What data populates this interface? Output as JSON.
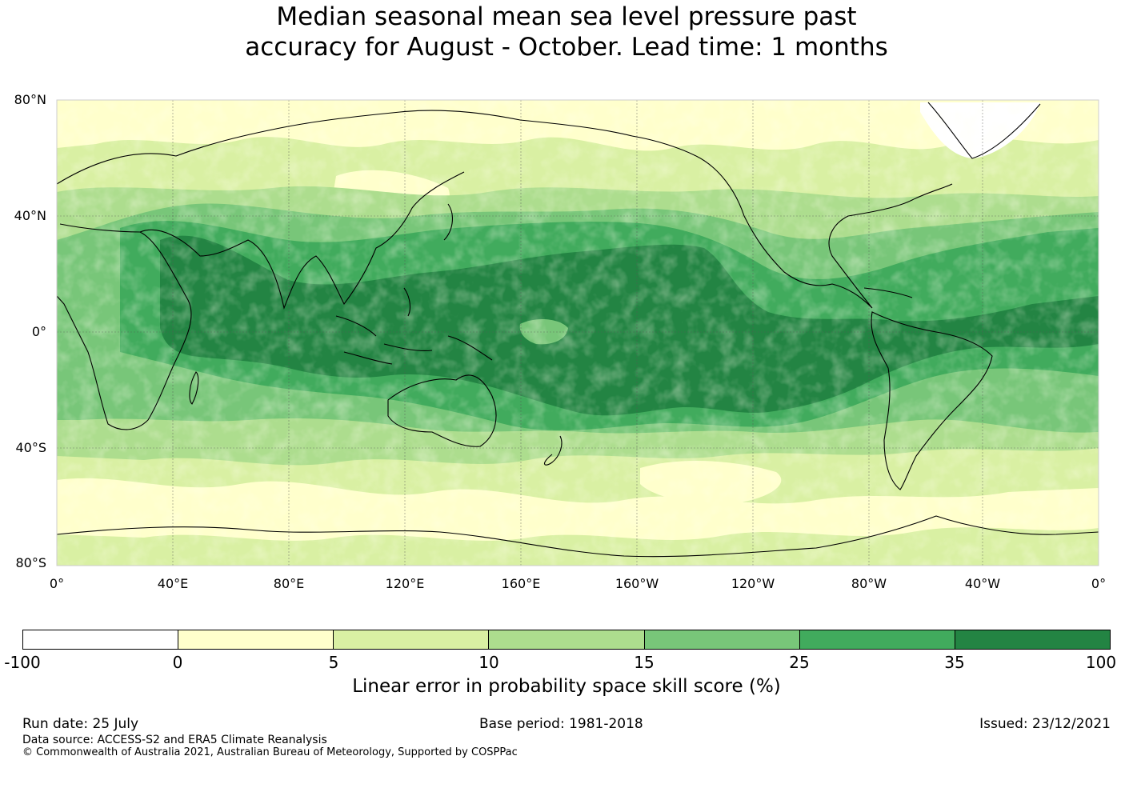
{
  "title": {
    "line1": "Median seasonal mean sea level pressure past",
    "line2": "accuracy for August - October. Lead time: 1 months"
  },
  "map": {
    "lat_labels": [
      "80°N",
      "40°N",
      "0°",
      "40°S",
      "80°S"
    ],
    "lon_labels": [
      "0°",
      "40°E",
      "80°E",
      "120°E",
      "160°E",
      "160°W",
      "120°W",
      "80°W",
      "40°W",
      "0°"
    ],
    "colors": {
      "neg": "#ffffff",
      "c0_5": "#ffffcc",
      "c5_10": "#d9f0a3",
      "c10_15": "#addd8e",
      "c15_25": "#78c679",
      "c25_35": "#41ab5d",
      "c35_100": "#238443",
      "coast": "#000000"
    }
  },
  "colorbar": {
    "ticks": [
      "-100",
      "0",
      "5",
      "10",
      "15",
      "25",
      "35",
      "100"
    ],
    "colors": [
      "#ffffff",
      "#ffffcc",
      "#d9f0a3",
      "#addd8e",
      "#78c679",
      "#41ab5d",
      "#238443"
    ],
    "label": "Linear error in probability space skill score (%)"
  },
  "footer": {
    "run_date": "Run date: 25 July",
    "base_period": "Base period: 1981-2018",
    "issued": "Issued: 23/12/2021",
    "data_source": "Data source: ACCESS-S2 and ERA5 Climate Reanalysis",
    "copyright": "© Commonwealth of Australia 2021, Australian Bureau of Meteorology, Supported by COSPPac"
  }
}
